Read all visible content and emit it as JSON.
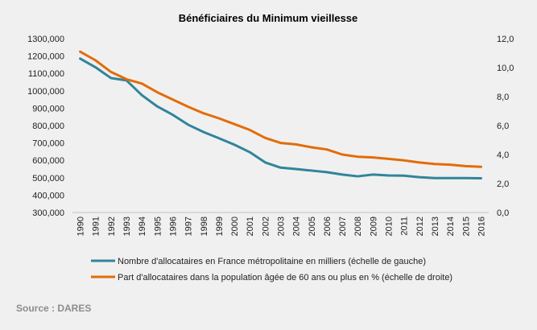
{
  "source": "Source : DARES",
  "chart_data": {
    "type": "line",
    "title": "Bénéficiaires du Minimum vieillesse",
    "categories": [
      "1990",
      "1991",
      "1992",
      "1993",
      "1994",
      "1995",
      "1996",
      "1997",
      "1998",
      "1999",
      "2000",
      "2001",
      "2002",
      "2003",
      "2004",
      "2005",
      "2006",
      "2007",
      "2008",
      "2009",
      "2010",
      "2011",
      "2012",
      "2013",
      "2014",
      "2015",
      "2016"
    ],
    "y_left": {
      "ylim": [
        300000,
        1300000
      ],
      "ticks": [
        "300,000",
        "400,000",
        "500,000",
        "600,000",
        "700,000",
        "800,000",
        "900,000",
        "1000,000",
        "1100,000",
        "1200,000",
        "1300,000"
      ]
    },
    "y_right": {
      "ylim": [
        0,
        12
      ],
      "ticks": [
        "0,0",
        "2,0",
        "4,0",
        "6,0",
        "8,0",
        "10,0",
        "12,0"
      ]
    },
    "grid": false,
    "legend": "bottom",
    "series": [
      {
        "name": "Nombre d'allocataires en France métropolitaine en milliers (échelle de gauche)",
        "axis": "left",
        "color": "#31849b",
        "values": [
          1185000,
          1135000,
          1073000,
          1060000,
          975000,
          910000,
          862000,
          805000,
          763000,
          727000,
          690000,
          647000,
          588000,
          558000,
          550000,
          541000,
          532000,
          518000,
          508000,
          518000,
          513000,
          512000,
          503000,
          498000,
          498000,
          498000,
          497000
        ]
      },
      {
        "name": "Part d'allocataires dans la population âgée de 60 ans ou plus en % (échelle de droite)",
        "axis": "right",
        "color": "#e36c09",
        "values": [
          11.1,
          10.5,
          9.7,
          9.2,
          8.9,
          8.3,
          7.8,
          7.3,
          6.85,
          6.5,
          6.1,
          5.7,
          5.15,
          4.8,
          4.7,
          4.5,
          4.35,
          4.0,
          3.85,
          3.8,
          3.7,
          3.6,
          3.45,
          3.35,
          3.3,
          3.2,
          3.15
        ]
      }
    ]
  }
}
